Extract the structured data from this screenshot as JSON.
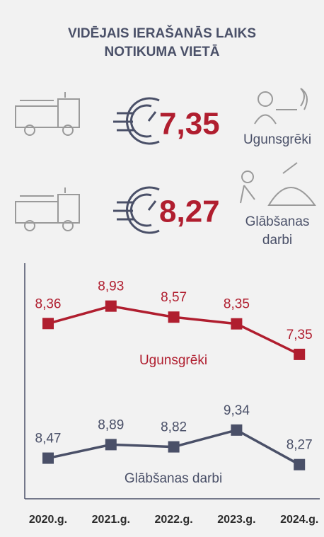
{
  "title": [
    "VIDĒJAIS IERAŠANĀS LAIKS",
    "NOTIKUMA VIETĀ"
  ],
  "kpis": [
    {
      "value": "7,35",
      "label": [
        "Ugunsgrēki"
      ]
    },
    {
      "value": "8,27",
      "label": [
        "Glābšanas",
        "darbi"
      ]
    }
  ],
  "chart_data": {
    "type": "line",
    "categories": [
      "2020.g.",
      "2021.g.",
      "2022.g.",
      "2023.g.",
      "2024.g."
    ],
    "series": [
      {
        "name": "Ugunsgrēki",
        "color": "#b01e2f",
        "ylim": [
          7,
          9.2
        ],
        "values": [
          8.36,
          8.93,
          8.57,
          8.35,
          7.35
        ],
        "value_labels": [
          "8,36",
          "8,93",
          "8,57",
          "8,35",
          "7,35"
        ]
      },
      {
        "name": "Glābšanas darbi",
        "color": "#4a5068",
        "ylim": [
          8,
          9.6
        ],
        "values": [
          8.47,
          8.89,
          8.82,
          9.34,
          8.27
        ],
        "value_labels": [
          "8,47",
          "8,89",
          "8,82",
          "9,34",
          "8,27"
        ]
      }
    ]
  }
}
